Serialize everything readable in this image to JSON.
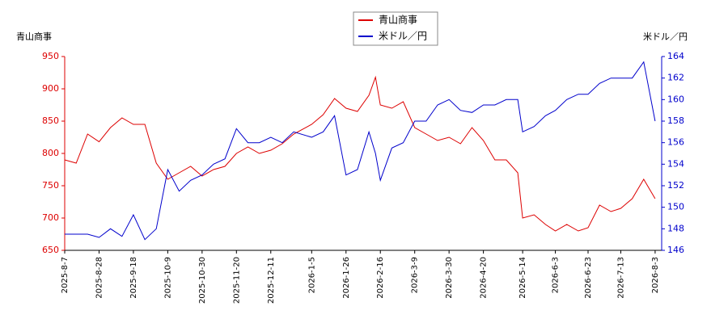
{
  "chart_data": {
    "type": "line",
    "ylabel": "青山商事",
    "y2label": "米ドル／円",
    "x": [
      "2025-8-7",
      "2025-8-14",
      "2025-8-21",
      "2025-8-28",
      "2025-9-4",
      "2025-9-11",
      "2025-9-18",
      "2025-9-25",
      "2025-10-2",
      "2025-10-9",
      "2025-10-16",
      "2025-10-23",
      "2025-10-30",
      "2025-11-6",
      "2025-11-13",
      "2025-11-20",
      "2025-11-27",
      "2025-12-4",
      "2025-12-11",
      "2025-12-18",
      "2025-12-25",
      "2026-1-5",
      "2026-1-12",
      "2026-1-19",
      "2026-1-26",
      "2026-2-2",
      "2026-2-9",
      "2026-2-13",
      "2026-2-16",
      "2026-2-23",
      "2026-3-2",
      "2026-3-9",
      "2026-3-16",
      "2026-3-23",
      "2026-3-30",
      "2026-4-6",
      "2026-4-13",
      "2026-4-20",
      "2026-4-27",
      "2026-5-4",
      "2026-5-11",
      "2026-5-14",
      "2026-5-21",
      "2026-5-28",
      "2026-6-3",
      "2026-6-10",
      "2026-6-17",
      "2026-6-23",
      "2026-6-30",
      "2026-7-7",
      "2026-7-13",
      "2026-7-20",
      "2026-7-27",
      "2026-8-3"
    ],
    "series": [
      {
        "name": "青山商事",
        "color": "#dd0000",
        "axis": "y",
        "values": [
          790,
          785,
          830,
          818,
          840,
          855,
          845,
          845,
          785,
          760,
          770,
          780,
          765,
          775,
          780,
          800,
          810,
          800,
          805,
          815,
          830,
          845,
          860,
          885,
          870,
          865,
          890,
          918,
          875,
          870,
          880,
          840,
          830,
          820,
          825,
          815,
          840,
          820,
          790,
          790,
          770,
          700,
          705,
          690,
          680,
          690,
          680,
          685,
          720,
          710,
          715,
          730,
          760,
          730
        ]
      },
      {
        "name": "米ドル／円",
        "color": "#0000cc",
        "axis": "y2",
        "values": [
          147.5,
          147.5,
          147.5,
          147.2,
          148,
          147.3,
          149.3,
          147,
          148,
          153.5,
          151.5,
          152.5,
          153,
          154,
          154.5,
          157.3,
          156,
          156,
          156.5,
          156,
          157,
          156.5,
          157,
          158.5,
          153,
          153.5,
          157,
          155,
          152.5,
          155.5,
          156,
          158,
          158,
          159.5,
          160,
          159,
          158.8,
          159.5,
          159.5,
          160,
          160,
          157,
          157.5,
          158.5,
          159,
          160,
          160.5,
          160.5,
          161.5,
          162,
          162,
          162,
          163.5,
          158
        ]
      }
    ],
    "xlim": [
      "2025-8-7",
      "2026-8-7"
    ],
    "xticks": [
      "2025-8-7",
      "2025-8-28",
      "2025-9-18",
      "2025-10-9",
      "2025-10-30",
      "2025-11-20",
      "2025-12-11",
      "2026-1-5",
      "2026-1-26",
      "2026-2-16",
      "2026-3-9",
      "2026-3-30",
      "2026-4-20",
      "2026-5-14",
      "2026-6-3",
      "2026-6-23",
      "2026-7-13",
      "2026-8-3"
    ],
    "ylim": [
      650,
      950
    ],
    "yticks": [
      650,
      700,
      750,
      800,
      850,
      900,
      950
    ],
    "y2lim": [
      146,
      164
    ],
    "y2ticks": [
      146,
      148,
      150,
      152,
      154,
      156,
      158,
      160,
      162,
      164
    ],
    "legend": "top"
  }
}
